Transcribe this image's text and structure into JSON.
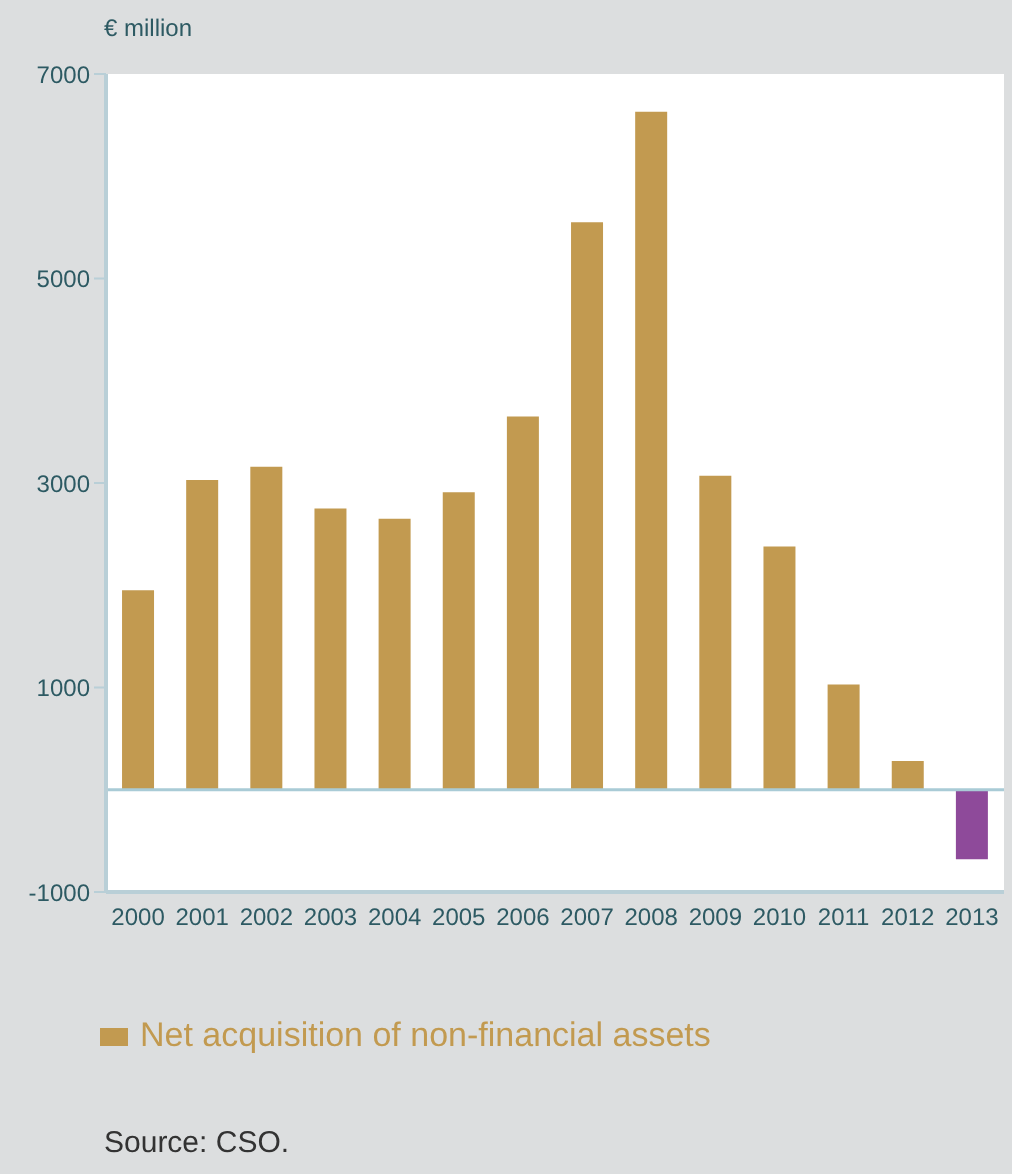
{
  "chart_data": {
    "type": "bar",
    "ylabel": "€ million",
    "categories": [
      "2000",
      "2001",
      "2002",
      "2003",
      "2004",
      "2005",
      "2006",
      "2007",
      "2008",
      "2009",
      "2010",
      "2011",
      "2012",
      "2013"
    ],
    "series": [
      {
        "name": "Net acquisition of non-financial assets",
        "color": "#c29a50",
        "values": [
          1950,
          3030,
          3160,
          2750,
          2650,
          2910,
          3650,
          5550,
          6630,
          3070,
          2380,
          1030,
          280,
          -680
        ],
        "colors": [
          "#c29a50",
          "#c29a50",
          "#c29a50",
          "#c29a50",
          "#c29a50",
          "#c29a50",
          "#c29a50",
          "#c29a50",
          "#c29a50",
          "#c29a50",
          "#c29a50",
          "#c29a50",
          "#c29a50",
          "#8e4a9a"
        ]
      }
    ],
    "ylim": [
      -1000,
      7000
    ],
    "yticks": [
      -1000,
      1000,
      3000,
      5000,
      7000
    ],
    "grid": false,
    "ref_lines": [
      {
        "axis": "y",
        "value": 0,
        "label": null,
        "color": "#a9cbd6"
      }
    ],
    "legend": "bottom",
    "annotations": [
      "Source: CSO."
    ]
  }
}
